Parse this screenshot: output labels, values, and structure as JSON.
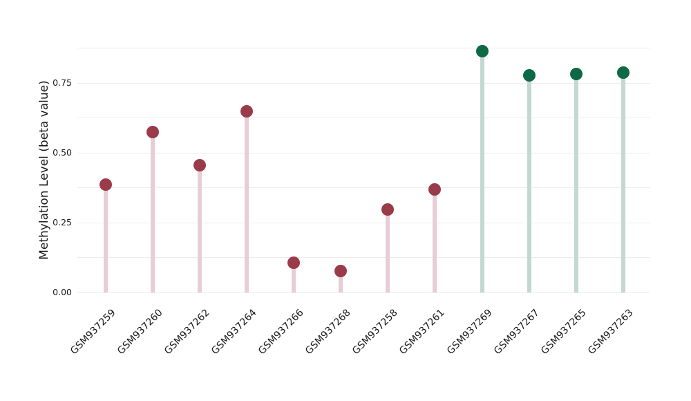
{
  "chart_data": {
    "type": "scatter",
    "style": "lollipop (stem plot with circular markers)",
    "title": "",
    "xlabel": "",
    "ylabel": "Methylation Level (beta value)",
    "ylim": [
      0,
      0.9
    ],
    "yticks": [
      0,
      0.25,
      0.5,
      0.75
    ],
    "ytick_labels": [
      "0.00",
      "0.25",
      "0.50",
      "0.75"
    ],
    "grid": "horizontal lines only, every 0.125 from 0.00 to 0.875",
    "legend": "none",
    "x_tick_angle_deg": 45,
    "points": [
      {
        "label": "GSM937259",
        "value": 0.385,
        "group": "red"
      },
      {
        "label": "GSM937260",
        "value": 0.575,
        "group": "red"
      },
      {
        "label": "GSM937262",
        "value": 0.455,
        "group": "red"
      },
      {
        "label": "GSM937264",
        "value": 0.648,
        "group": "red"
      },
      {
        "label": "GSM937266",
        "value": 0.107,
        "group": "red"
      },
      {
        "label": "GSM937268",
        "value": 0.076,
        "group": "red"
      },
      {
        "label": "GSM937258",
        "value": 0.298,
        "group": "red"
      },
      {
        "label": "GSM937261",
        "value": 0.368,
        "group": "red"
      },
      {
        "label": "GSM937269",
        "value": 0.865,
        "group": "green"
      },
      {
        "label": "GSM937267",
        "value": 0.777,
        "group": "green"
      },
      {
        "label": "GSM937265",
        "value": 0.781,
        "group": "green"
      },
      {
        "label": "GSM937263",
        "value": 0.787,
        "group": "green"
      }
    ],
    "colors": {
      "red_dot": "#9A3B49",
      "red_stem": "#E7CED4",
      "green_dot": "#0E6945",
      "green_stem": "#C4D8CF",
      "gridline": "#ECECEC",
      "text": "#1A1A1A",
      "background": "#FFFFFF"
    }
  }
}
